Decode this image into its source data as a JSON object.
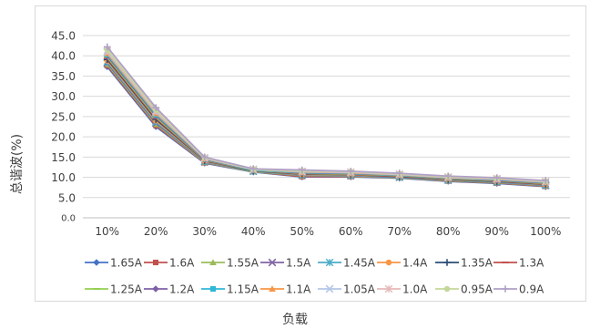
{
  "chart_data": {
    "type": "line",
    "xlabel": "负载",
    "ylabel": "总谐波(%)",
    "ylim": [
      0,
      45
    ],
    "yticks": [
      "0.0",
      "5.0",
      "10.0",
      "15.0",
      "20.0",
      "25.0",
      "30.0",
      "35.0",
      "40.0",
      "45.0"
    ],
    "categories": [
      "10%",
      "20%",
      "30%",
      "40%",
      "50%",
      "60%",
      "70%",
      "80%",
      "90%",
      "100%"
    ],
    "grid": true,
    "legend": "bottom",
    "series": [
      {
        "name": "1.65A",
        "color": "#4472c4",
        "marker": "diamond",
        "values": [
          37.3,
          22.5,
          13.5,
          11.3,
          10.1,
          10.1,
          9.8,
          9.0,
          8.5,
          7.7
        ]
      },
      {
        "name": "1.6A",
        "color": "#c0504d",
        "marker": "square",
        "values": [
          37.6,
          22.8,
          13.6,
          11.4,
          10.2,
          10.2,
          9.9,
          9.1,
          8.6,
          7.8
        ]
      },
      {
        "name": "1.55A",
        "color": "#9bbb59",
        "marker": "triangle",
        "values": [
          37.9,
          23.1,
          13.7,
          11.4,
          10.4,
          10.3,
          9.9,
          9.2,
          8.7,
          7.9
        ]
      },
      {
        "name": "1.5A",
        "color": "#8064a2",
        "marker": "x",
        "values": [
          38.2,
          23.4,
          13.8,
          11.5,
          10.5,
          10.4,
          10.0,
          9.3,
          8.8,
          8.0
        ]
      },
      {
        "name": "1.45A",
        "color": "#4bacc6",
        "marker": "star",
        "values": [
          38.5,
          23.7,
          13.9,
          11.5,
          10.6,
          10.5,
          10.1,
          9.3,
          8.9,
          8.1
        ]
      },
      {
        "name": "1.4A",
        "color": "#f79646",
        "marker": "circle",
        "values": [
          38.8,
          24.0,
          14.0,
          11.6,
          10.7,
          10.6,
          10.2,
          9.4,
          9.0,
          8.2
        ]
      },
      {
        "name": "1.35A",
        "color": "#2c4d75",
        "marker": "plus",
        "values": [
          39.1,
          24.3,
          14.1,
          11.6,
          10.8,
          10.7,
          10.2,
          9.5,
          9.0,
          8.3
        ]
      },
      {
        "name": "1.3A",
        "color": "#c0504d",
        "marker": "dash",
        "values": [
          39.4,
          24.6,
          14.2,
          11.7,
          10.9,
          10.7,
          10.3,
          9.6,
          9.1,
          8.4
        ]
      },
      {
        "name": "1.25A",
        "color": "#92d050",
        "marker": "dash",
        "values": [
          39.7,
          24.9,
          14.3,
          11.7,
          11.0,
          10.8,
          10.4,
          9.7,
          9.2,
          8.5
        ]
      },
      {
        "name": "1.2A",
        "color": "#7f60a8",
        "marker": "diamond",
        "values": [
          40.0,
          25.2,
          14.4,
          11.8,
          11.1,
          10.9,
          10.5,
          9.8,
          9.3,
          8.6
        ]
      },
      {
        "name": "1.15A",
        "color": "#31b6d8",
        "marker": "square",
        "values": [
          40.3,
          25.5,
          14.5,
          11.8,
          11.2,
          11.0,
          10.5,
          9.8,
          9.4,
          8.7
        ]
      },
      {
        "name": "1.1A",
        "color": "#f79646",
        "marker": "triangle",
        "values": [
          40.6,
          25.8,
          14.6,
          11.9,
          11.3,
          11.1,
          10.6,
          9.9,
          9.5,
          8.8
        ]
      },
      {
        "name": "1.05A",
        "color": "#b3c6e7",
        "marker": "x",
        "values": [
          40.9,
          26.1,
          14.7,
          11.9,
          11.4,
          11.2,
          10.7,
          10.0,
          9.6,
          8.9
        ]
      },
      {
        "name": "1.0A",
        "color": "#e6b9b8",
        "marker": "star",
        "values": [
          41.2,
          26.4,
          14.8,
          12.0,
          11.5,
          11.3,
          10.8,
          10.1,
          9.7,
          9.0
        ]
      },
      {
        "name": "0.95A",
        "color": "#c4d79b",
        "marker": "circle",
        "values": [
          41.5,
          26.7,
          14.9,
          12.0,
          11.6,
          11.4,
          10.9,
          10.2,
          9.8,
          9.1
        ]
      },
      {
        "name": "0.9A",
        "color": "#b1a0c7",
        "marker": "plus",
        "values": [
          42.2,
          27.2,
          15.0,
          12.1,
          11.8,
          11.5,
          11.0,
          10.3,
          9.9,
          9.2
        ]
      }
    ]
  }
}
